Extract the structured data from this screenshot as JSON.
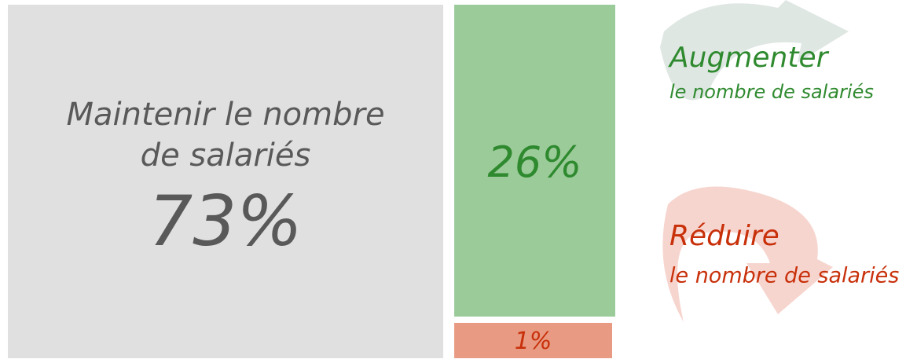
{
  "chart_data": {
    "type": "treemap",
    "categories": [
      [
        "Maintenir le nombre",
        "de salariés"
      ],
      [
        "Augmenter",
        "le nombre de salariés"
      ],
      [
        "Réduire",
        "le nombre de salariés"
      ]
    ],
    "values": [
      73,
      26,
      1
    ],
    "value_labels": [
      "73%",
      "26%",
      "1%"
    ],
    "colors": [
      "#e0e0e0",
      "#9ccb9a",
      "#e89a82"
    ],
    "text_colors": [
      "#595959",
      "#2f8a2f",
      "#c8300a"
    ]
  }
}
